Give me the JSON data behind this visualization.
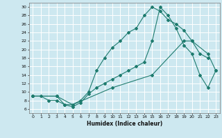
{
  "title": "",
  "xlabel": "Humidex (Indice chaleur)",
  "bg_color": "#cde8f0",
  "line_color": "#1e7b6e",
  "grid_color": "#ffffff",
  "xlim": [
    -0.5,
    23.5
  ],
  "ylim": [
    5,
    31
  ],
  "xticks": [
    0,
    1,
    2,
    3,
    4,
    5,
    6,
    7,
    8,
    9,
    10,
    11,
    12,
    13,
    14,
    15,
    16,
    17,
    18,
    19,
    20,
    21,
    22,
    23
  ],
  "yticks": [
    6,
    8,
    10,
    12,
    14,
    16,
    18,
    20,
    22,
    24,
    26,
    28,
    30
  ],
  "line1_x": [
    0,
    1,
    2,
    3,
    4,
    5,
    6,
    7,
    8,
    9,
    10,
    11,
    12,
    13,
    14,
    15,
    16,
    17,
    18,
    19,
    20,
    21,
    22
  ],
  "line1_y": [
    9,
    9,
    8,
    8,
    7,
    7,
    8,
    10,
    15,
    18,
    20.5,
    22,
    24,
    25,
    28,
    30,
    29,
    27,
    26,
    24.5,
    22,
    19,
    18
  ],
  "line2_x": [
    0,
    3,
    4,
    5,
    6,
    7,
    8,
    9,
    10,
    11,
    12,
    13,
    14,
    15,
    16,
    17,
    18,
    19,
    20,
    21,
    22,
    23
  ],
  "line2_y": [
    9,
    9,
    7,
    6.5,
    7.5,
    9.5,
    11,
    12,
    13,
    14,
    15,
    16,
    17,
    22,
    30,
    28,
    25,
    21,
    19,
    14,
    11,
    15
  ],
  "line3_x": [
    0,
    3,
    5,
    10,
    15,
    19,
    20,
    22,
    23
  ],
  "line3_y": [
    9,
    9,
    7,
    11,
    14,
    22,
    22,
    19,
    15
  ]
}
